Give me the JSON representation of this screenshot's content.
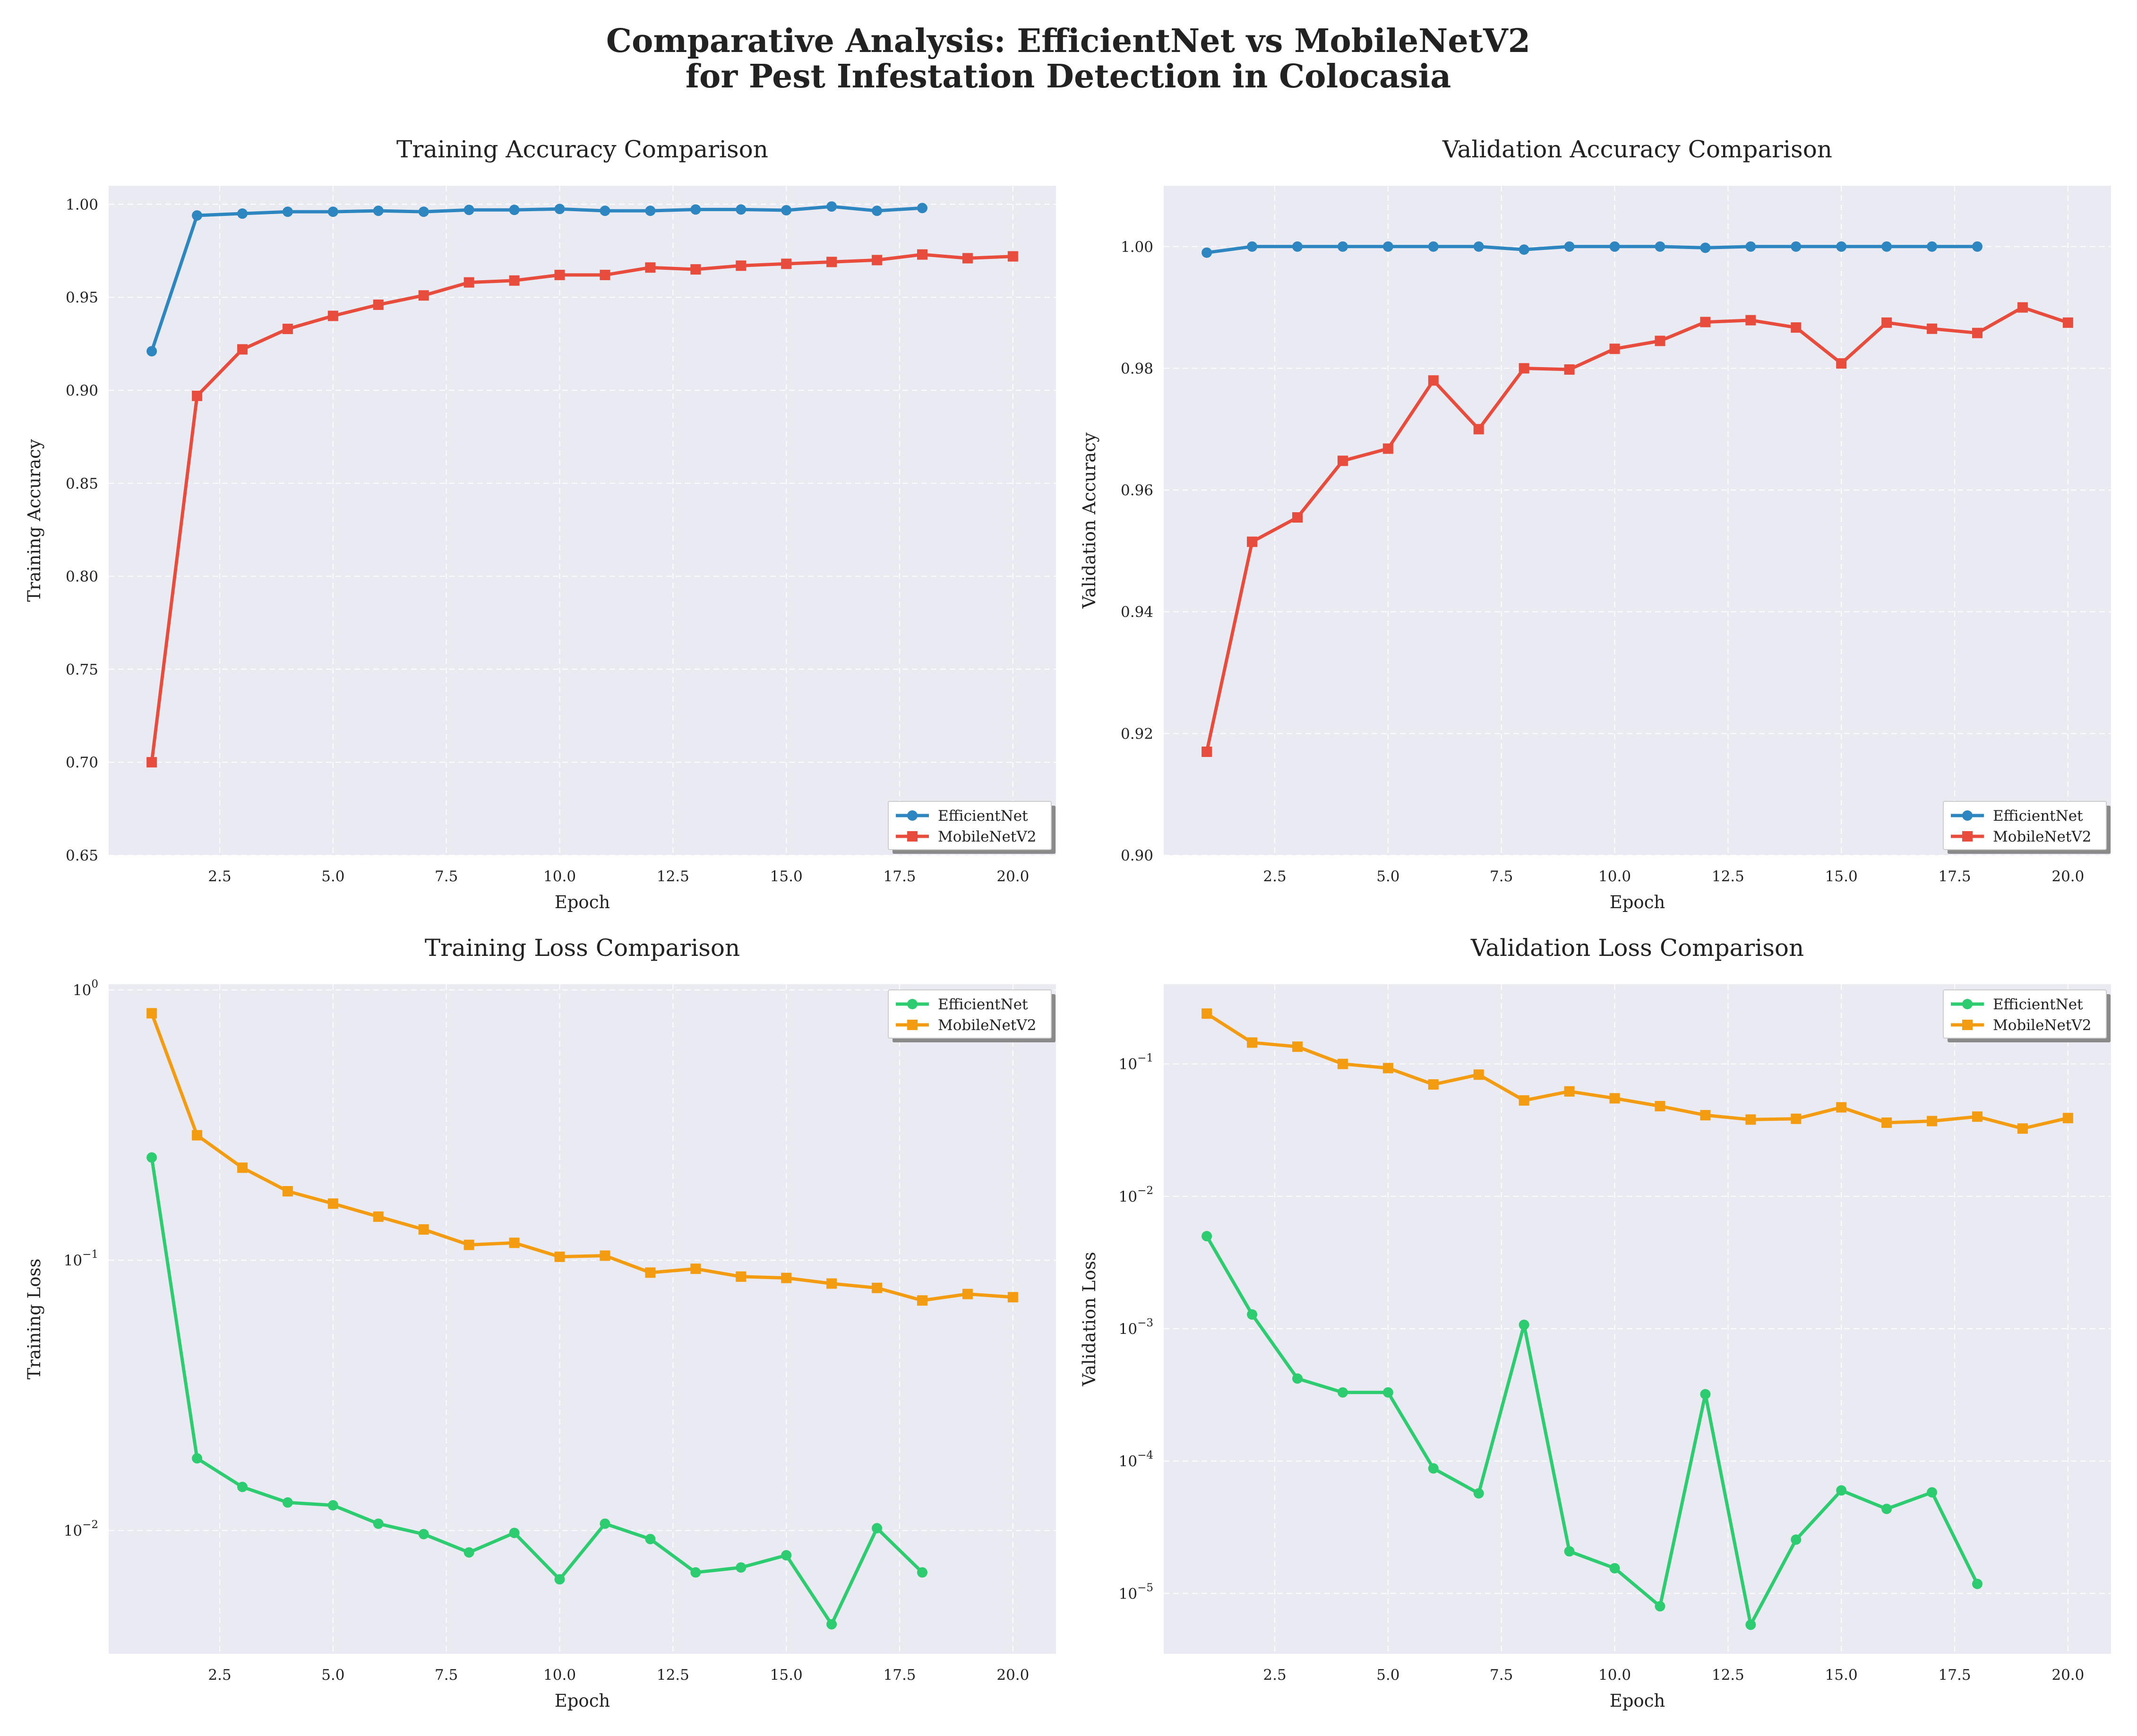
{
  "figure": {
    "title_line1": "Comparative Analysis: EfficientNet vs MobileNetV2",
    "title_line2": "for Pest Infestation Detection in Colocasia"
  },
  "colors": {
    "efficientnet_acc": "#2e86c1",
    "mobilenet_acc": "#e74c3c",
    "efficientnet_loss": "#2ecc71",
    "mobilenet_loss": "#f39c12",
    "axes_bg": "#eaeaf2"
  },
  "chart_data": [
    {
      "type": "line",
      "title": "Training Accuracy Comparison",
      "xlabel": "Epoch",
      "ylabel": "Training Accuracy",
      "xlim": [
        0.05,
        20.95
      ],
      "ylim": [
        0.65,
        1.01
      ],
      "yscale": "linear",
      "xticks": [
        2.5,
        5.0,
        7.5,
        10.0,
        12.5,
        15.0,
        17.5,
        20.0
      ],
      "xtick_labels": [
        "2.5",
        "5.0",
        "7.5",
        "10.0",
        "12.5",
        "15.0",
        "17.5",
        "20.0"
      ],
      "yticks": [
        0.65,
        0.7,
        0.75,
        0.8,
        0.85,
        0.9,
        0.95,
        1.0
      ],
      "ytick_labels": [
        "0.65",
        "0.70",
        "0.75",
        "0.80",
        "0.85",
        "0.90",
        "0.95",
        "1.00"
      ],
      "grid": true,
      "legend": "lower right",
      "series": [
        {
          "name": "EfficientNet",
          "marker": "circle",
          "color": "#2e86c1",
          "x": [
            1,
            2,
            3,
            4,
            5,
            6,
            7,
            8,
            9,
            10,
            11,
            12,
            13,
            14,
            15,
            16,
            17,
            18
          ],
          "y": [
            0.921,
            0.994,
            0.995,
            0.996,
            0.996,
            0.9965,
            0.996,
            0.997,
            0.997,
            0.9975,
            0.9965,
            0.9965,
            0.9972,
            0.9972,
            0.9968,
            0.9988,
            0.9965,
            0.998
          ]
        },
        {
          "name": "MobileNetV2",
          "marker": "square",
          "color": "#e74c3c",
          "x": [
            1,
            2,
            3,
            4,
            5,
            6,
            7,
            8,
            9,
            10,
            11,
            12,
            13,
            14,
            15,
            16,
            17,
            18,
            19,
            20
          ],
          "y": [
            0.7,
            0.897,
            0.922,
            0.933,
            0.94,
            0.946,
            0.951,
            0.958,
            0.959,
            0.962,
            0.962,
            0.966,
            0.965,
            0.967,
            0.968,
            0.969,
            0.97,
            0.973,
            0.971,
            0.972
          ]
        }
      ]
    },
    {
      "type": "line",
      "title": "Validation Accuracy Comparison",
      "xlabel": "Epoch",
      "ylabel": "Validation Accuracy",
      "xlim": [
        0.05,
        20.95
      ],
      "ylim": [
        0.9,
        1.01
      ],
      "yscale": "linear",
      "xticks": [
        2.5,
        5.0,
        7.5,
        10.0,
        12.5,
        15.0,
        17.5,
        20.0
      ],
      "xtick_labels": [
        "2.5",
        "5.0",
        "7.5",
        "10.0",
        "12.5",
        "15.0",
        "17.5",
        "20.0"
      ],
      "yticks": [
        0.9,
        0.92,
        0.94,
        0.96,
        0.98,
        1.0
      ],
      "ytick_labels": [
        "0.90",
        "0.92",
        "0.94",
        "0.96",
        "0.98",
        "1.00"
      ],
      "grid": true,
      "legend": "lower right",
      "series": [
        {
          "name": "EfficientNet",
          "marker": "circle",
          "color": "#2e86c1",
          "x": [
            1,
            2,
            3,
            4,
            5,
            6,
            7,
            8,
            9,
            10,
            11,
            12,
            13,
            14,
            15,
            16,
            17,
            18
          ],
          "y": [
            0.999,
            1.0,
            1.0,
            1.0,
            1.0,
            1.0,
            1.0,
            0.9995,
            1.0,
            1.0,
            1.0,
            0.9998,
            1.0,
            1.0,
            1.0,
            1.0,
            1.0,
            1.0
          ]
        },
        {
          "name": "MobileNetV2",
          "marker": "square",
          "color": "#e74c3c",
          "x": [
            1,
            2,
            3,
            4,
            5,
            6,
            7,
            8,
            9,
            10,
            11,
            12,
            13,
            14,
            15,
            16,
            17,
            18,
            19,
            20
          ],
          "y": [
            0.917,
            0.9515,
            0.9555,
            0.9648,
            0.9668,
            0.978,
            0.97,
            0.98,
            0.9798,
            0.9832,
            0.9845,
            0.9876,
            0.9879,
            0.9867,
            0.9808,
            0.9875,
            0.9865,
            0.9858,
            0.99,
            0.9875
          ]
        }
      ]
    },
    {
      "type": "line",
      "title": "Training Loss Comparison",
      "xlabel": "Epoch",
      "ylabel": "Training Loss",
      "xlim": [
        0.05,
        20.95
      ],
      "ylim": [
        0.0035,
        1.05
      ],
      "yscale": "log",
      "xticks": [
        2.5,
        5.0,
        7.5,
        10.0,
        12.5,
        15.0,
        17.5,
        20.0
      ],
      "xtick_labels": [
        "2.5",
        "5.0",
        "7.5",
        "10.0",
        "12.5",
        "15.0",
        "17.5",
        "20.0"
      ],
      "yticks": [
        0.01,
        0.1,
        1
      ],
      "ytick_labels": [
        {
          "base": "10",
          "exp": "−2"
        },
        {
          "base": "10",
          "exp": "−1"
        },
        {
          "base": "10",
          "exp": "0"
        }
      ],
      "grid": true,
      "legend": "upper right",
      "series": [
        {
          "name": "EfficientNet",
          "marker": "circle",
          "color": "#2ecc71",
          "x": [
            1,
            2,
            3,
            4,
            5,
            6,
            7,
            8,
            9,
            10,
            11,
            12,
            13,
            14,
            15,
            16,
            17,
            18
          ],
          "y": [
            0.24,
            0.0185,
            0.0145,
            0.0127,
            0.0124,
            0.0106,
            0.0097,
            0.0083,
            0.0098,
            0.0066,
            0.0106,
            0.0093,
            0.007,
            0.0073,
            0.0081,
            0.0045,
            0.0102,
            0.007
          ]
        },
        {
          "name": "MobileNetV2",
          "marker": "square",
          "color": "#f39c12",
          "x": [
            1,
            2,
            3,
            4,
            5,
            6,
            7,
            8,
            9,
            10,
            11,
            12,
            13,
            14,
            15,
            16,
            17,
            18,
            19,
            20
          ],
          "y": [
            0.82,
            0.29,
            0.22,
            0.18,
            0.162,
            0.145,
            0.13,
            0.114,
            0.116,
            0.103,
            0.104,
            0.09,
            0.093,
            0.087,
            0.086,
            0.082,
            0.079,
            0.071,
            0.075,
            0.073
          ]
        }
      ]
    },
    {
      "type": "line",
      "title": "Validation Loss Comparison",
      "xlabel": "Epoch",
      "ylabel": "Validation Loss",
      "xlim": [
        0.05,
        20.95
      ],
      "ylim": [
        3.5e-06,
        0.4
      ],
      "yscale": "log",
      "xticks": [
        2.5,
        5.0,
        7.5,
        10.0,
        12.5,
        15.0,
        17.5,
        20.0
      ],
      "xtick_labels": [
        "2.5",
        "5.0",
        "7.5",
        "10.0",
        "12.5",
        "15.0",
        "17.5",
        "20.0"
      ],
      "yticks": [
        1e-05,
        0.0001,
        0.001,
        0.01,
        0.1
      ],
      "ytick_labels": [
        {
          "base": "10",
          "exp": "−5"
        },
        {
          "base": "10",
          "exp": "−4"
        },
        {
          "base": "10",
          "exp": "−3"
        },
        {
          "base": "10",
          "exp": "−2"
        },
        {
          "base": "10",
          "exp": "−1"
        }
      ],
      "grid": true,
      "legend": "upper right",
      "series": [
        {
          "name": "EfficientNet",
          "marker": "circle",
          "color": "#2ecc71",
          "x": [
            1,
            2,
            3,
            4,
            5,
            6,
            7,
            8,
            9,
            10,
            11,
            12,
            13,
            14,
            15,
            16,
            17,
            18
          ],
          "y": [
            0.005,
            0.00128,
            0.00042,
            0.00033,
            0.00033,
            8.8e-05,
            5.7e-05,
            0.00107,
            2.08e-05,
            1.55e-05,
            8e-06,
            0.00032,
            5.8e-06,
            2.55e-05,
            6e-05,
            4.35e-05,
            5.8e-05,
            1.18e-05
          ]
        },
        {
          "name": "MobileNetV2",
          "marker": "square",
          "color": "#f39c12",
          "x": [
            1,
            2,
            3,
            4,
            5,
            6,
            7,
            8,
            9,
            10,
            11,
            12,
            13,
            14,
            15,
            16,
            17,
            18,
            19,
            20
          ],
          "y": [
            0.24,
            0.145,
            0.135,
            0.1,
            0.093,
            0.07,
            0.083,
            0.053,
            0.062,
            0.055,
            0.048,
            0.041,
            0.038,
            0.0385,
            0.047,
            0.036,
            0.037,
            0.04,
            0.0325,
            0.039
          ]
        }
      ]
    }
  ]
}
